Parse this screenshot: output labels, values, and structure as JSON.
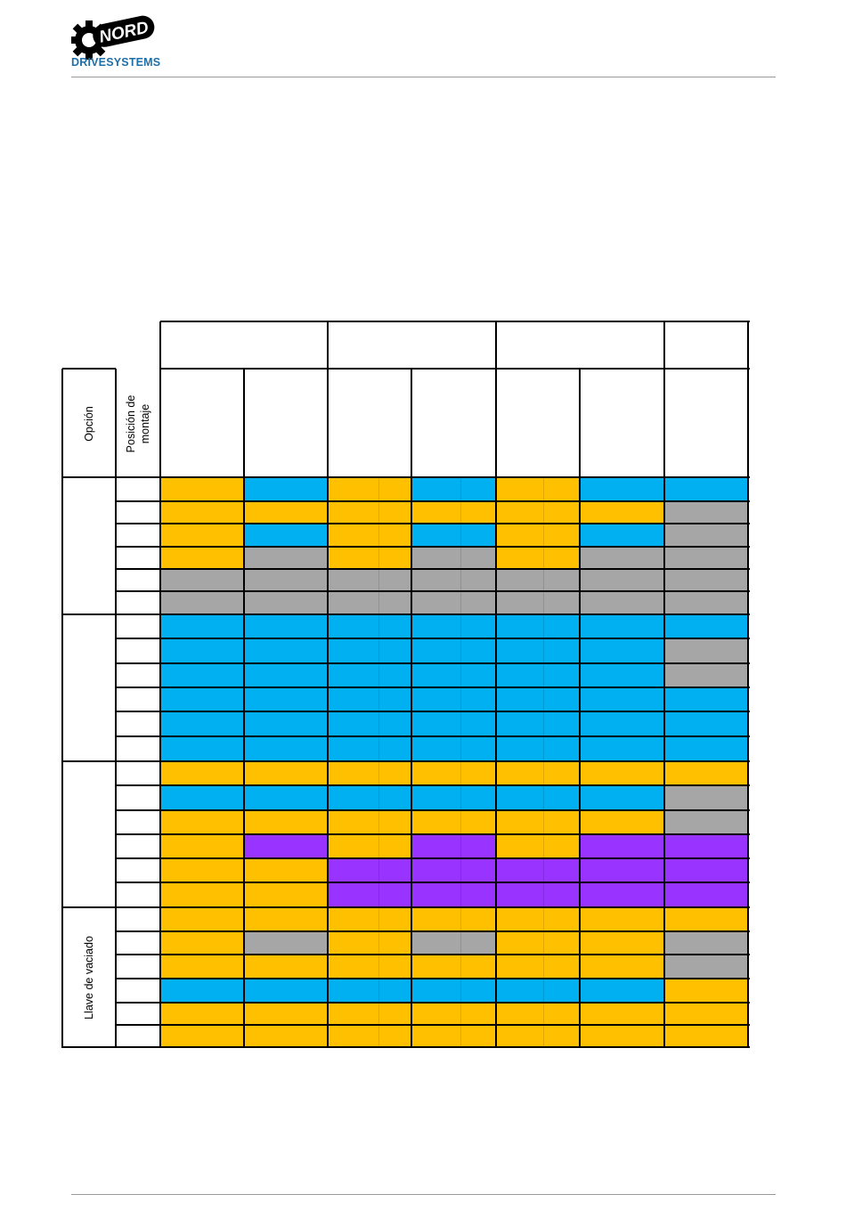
{
  "header": {
    "brand": "DRIVESYSTEMS",
    "logo_word": "NORD"
  },
  "table": {
    "col_headers": {
      "option": "Opción",
      "position": "Posición de montaje"
    },
    "group_labels": [
      "",
      "",
      "",
      "Llave de vaciado"
    ],
    "colors": {
      "Y": "#FFC000",
      "B": "#00B0F0",
      "G": "#A6A6A6",
      "P": "#9933FF"
    },
    "rows": [
      [
        "Y",
        "B",
        "Y",
        "B",
        "Y",
        "B",
        "B"
      ],
      [
        "Y",
        "Y",
        "Y",
        "Y",
        "Y",
        "Y",
        "G"
      ],
      [
        "Y",
        "B",
        "Y",
        "B",
        "Y",
        "B",
        "G"
      ],
      [
        "Y",
        "G",
        "Y",
        "G",
        "Y",
        "G",
        "G"
      ],
      [
        "G",
        "G",
        "G",
        "G",
        "G",
        "G",
        "G"
      ],
      [
        "G",
        "G",
        "G",
        "G",
        "G",
        "G",
        "G"
      ],
      [
        "B",
        "B",
        "B",
        "B",
        "B",
        "B",
        "B"
      ],
      [
        "B",
        "B",
        "B",
        "B",
        "B",
        "B",
        "G"
      ],
      [
        "B",
        "B",
        "B",
        "B",
        "B",
        "B",
        "G"
      ],
      [
        "B",
        "B",
        "B",
        "B",
        "B",
        "B",
        "B"
      ],
      [
        "B",
        "B",
        "B",
        "B",
        "B",
        "B",
        "B"
      ],
      [
        "B",
        "B",
        "B",
        "B",
        "B",
        "B",
        "B"
      ],
      [
        "Y",
        "Y",
        "Y",
        "Y",
        "Y",
        "Y",
        "Y"
      ],
      [
        "B",
        "B",
        "B",
        "B",
        "B",
        "B",
        "G"
      ],
      [
        "Y",
        "Y",
        "Y",
        "Y",
        "Y",
        "Y",
        "G"
      ],
      [
        "Y",
        "P",
        "Y",
        "P",
        "Y",
        "P",
        "P"
      ],
      [
        "Y",
        "Y",
        "P",
        "P",
        "P",
        "P",
        "P"
      ],
      [
        "Y",
        "Y",
        "P",
        "P",
        "P",
        "P",
        "P"
      ],
      [
        "Y",
        "Y",
        "Y",
        "Y",
        "Y",
        "Y",
        "Y"
      ],
      [
        "Y",
        "G",
        "Y",
        "G",
        "Y",
        "Y",
        "G"
      ],
      [
        "Y",
        "Y",
        "Y",
        "Y",
        "Y",
        "Y",
        "G"
      ],
      [
        "B",
        "B",
        "B",
        "B",
        "B",
        "B",
        "Y"
      ],
      [
        "Y",
        "Y",
        "Y",
        "Y",
        "Y",
        "Y",
        "Y"
      ],
      [
        "Y",
        "Y",
        "Y",
        "Y",
        "Y",
        "Y",
        "Y"
      ]
    ]
  }
}
